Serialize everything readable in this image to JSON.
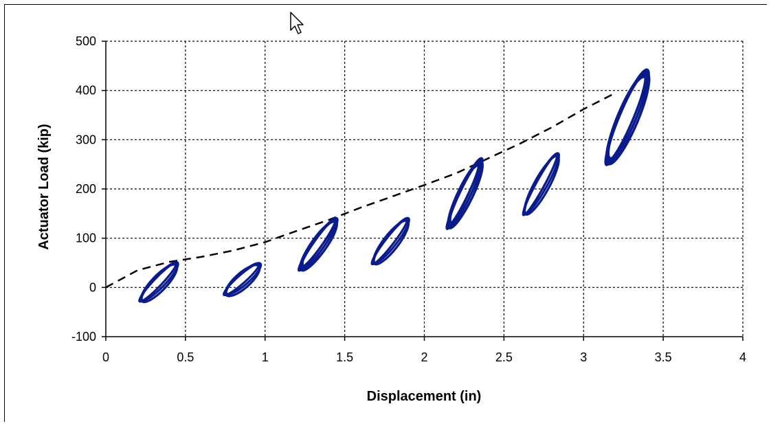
{
  "window": {
    "cursor_icon": "arrow-cursor-icon"
  },
  "colors": {
    "loops": "#0a1b8c",
    "envelope": "#000000",
    "grid": "#000000"
  },
  "chart_data": {
    "type": "line",
    "title": "",
    "xlabel": "Displacement (in)",
    "ylabel": "Actuator Load (kip)",
    "xlim": [
      0,
      4
    ],
    "ylim": [
      -100,
      500
    ],
    "xticks": [
      0,
      0.5,
      1,
      1.5,
      2,
      2.5,
      3,
      3.5,
      4
    ],
    "xtick_labels": [
      "0",
      "0.5",
      "1",
      "1.5",
      "2",
      "2.5",
      "3",
      "3.5",
      "4"
    ],
    "yticks": [
      -100,
      0,
      100,
      200,
      300,
      400,
      500
    ],
    "ytick_labels": [
      "-100",
      "0",
      "100",
      "200",
      "300",
      "400",
      "500"
    ],
    "grid": true,
    "legend": "none",
    "series": [
      {
        "style": "dashed",
        "color": "#000000",
        "x": [
          0,
          0.2,
          0.4,
          0.6,
          0.8,
          1.0,
          1.2,
          1.4,
          1.6,
          1.8,
          2.0,
          2.2,
          2.4,
          2.6,
          2.8,
          3.0,
          3.2
        ],
        "y": [
          0,
          35,
          52,
          62,
          75,
          92,
          115,
          137,
          162,
          185,
          208,
          232,
          262,
          292,
          325,
          362,
          395
        ]
      },
      {
        "style": "loops",
        "color": "#0a1b8c",
        "cycles": [
          {
            "x_range": [
              0.22,
              0.45
            ],
            "y_range": [
              -28,
              50
            ]
          },
          {
            "x_range": [
              0.75,
              0.97
            ],
            "y_range": [
              -15,
              48
            ]
          },
          {
            "x_range": [
              1.22,
              1.45
            ],
            "y_range": [
              35,
              140
            ]
          },
          {
            "x_range": [
              1.68,
              1.9
            ],
            "y_range": [
              48,
              140
            ]
          },
          {
            "x_range": [
              2.15,
              2.36
            ],
            "y_range": [
              120,
              262
            ]
          },
          {
            "x_range": [
              2.63,
              2.84
            ],
            "y_range": [
              148,
              272
            ]
          },
          {
            "x_range": [
              3.15,
              3.4
            ],
            "y_range": [
              250,
              442
            ]
          }
        ]
      }
    ]
  }
}
